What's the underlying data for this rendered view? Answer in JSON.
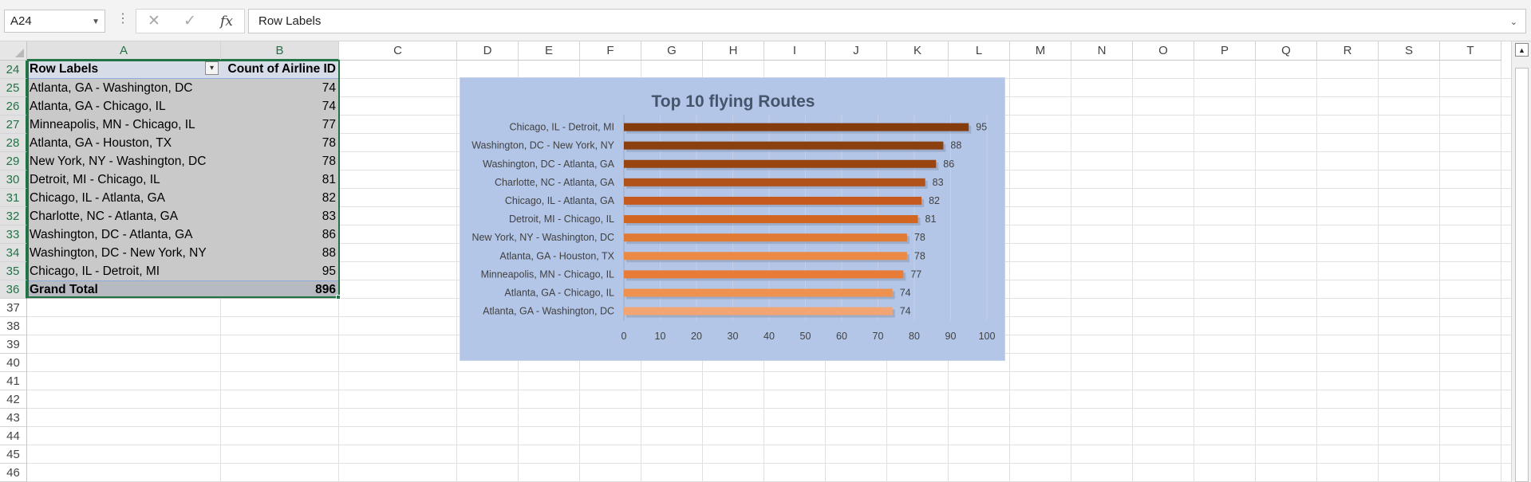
{
  "formula_bar": {
    "name_box": "A24",
    "cancel_icon": "x-icon",
    "enter_icon": "check-icon",
    "fx_label": "fx",
    "formula": "Row Labels"
  },
  "columns": [
    "A",
    "B",
    "C",
    "D",
    "E",
    "F",
    "G",
    "H",
    "I",
    "J",
    "K",
    "L",
    "M",
    "N",
    "O",
    "P",
    "Q",
    "R",
    "S",
    "T"
  ],
  "selected_columns": [
    "A",
    "B"
  ],
  "rows": [
    24,
    25,
    26,
    27,
    28,
    29,
    30,
    31,
    32,
    33,
    34,
    35,
    36,
    37,
    38,
    39,
    40,
    41,
    42,
    43,
    44,
    45,
    46
  ],
  "selected_rows": [
    24,
    25,
    26,
    27,
    28,
    29,
    30,
    31,
    32,
    33,
    34,
    35,
    36
  ],
  "pivot": {
    "header": {
      "label": "Row Labels",
      "value": "Count of Airline ID"
    },
    "items": [
      {
        "label": "Atlanta, GA - Washington, DC",
        "value": "74"
      },
      {
        "label": "Atlanta, GA - Chicago, IL",
        "value": "74"
      },
      {
        "label": "Minneapolis, MN - Chicago, IL",
        "value": "77"
      },
      {
        "label": "Atlanta, GA - Houston, TX",
        "value": "78"
      },
      {
        "label": "New York, NY - Washington, DC",
        "value": "78"
      },
      {
        "label": "Detroit, MI - Chicago, IL",
        "value": "81"
      },
      {
        "label": "Chicago, IL - Atlanta, GA",
        "value": "82"
      },
      {
        "label": "Charlotte, NC - Atlanta, GA",
        "value": "83"
      },
      {
        "label": "Washington, DC - Atlanta, GA",
        "value": "86"
      },
      {
        "label": "Washington, DC - New York, NY",
        "value": "88"
      },
      {
        "label": "Chicago, IL - Detroit, MI",
        "value": "95"
      }
    ],
    "total": {
      "label": "Grand Total",
      "value": "896"
    }
  },
  "chart_data": {
    "type": "bar",
    "orientation": "horizontal",
    "title": "Top 10 flying Routes",
    "categories": [
      "Chicago, IL - Detroit, MI",
      "Washington, DC - New York, NY",
      "Washington, DC - Atlanta, GA",
      "Charlotte, NC - Atlanta, GA",
      "Chicago, IL - Atlanta, GA",
      "Detroit, MI - Chicago, IL",
      "New York, NY - Washington, DC",
      "Atlanta, GA - Houston, TX",
      "Minneapolis, MN - Chicago, IL",
      "Atlanta, GA - Chicago, IL",
      "Atlanta, GA - Washington, DC"
    ],
    "values": [
      95,
      88,
      86,
      83,
      82,
      81,
      78,
      78,
      77,
      74,
      74
    ],
    "xlim": [
      0,
      100
    ],
    "xticks": [
      0,
      10,
      20,
      30,
      40,
      50,
      60,
      70,
      80,
      90,
      100
    ],
    "data_labels": true,
    "grid": "vertical",
    "legend": "none",
    "bar_colors": [
      "#843c0c",
      "#8b400f",
      "#984512",
      "#b0521a",
      "#c45a1e",
      "#d2651f",
      "#e07a35",
      "#ec8a45",
      "#e87b35",
      "#f0924f",
      "#f2a572"
    ],
    "background": "#b4c6e7",
    "title_color": "#44546a"
  }
}
